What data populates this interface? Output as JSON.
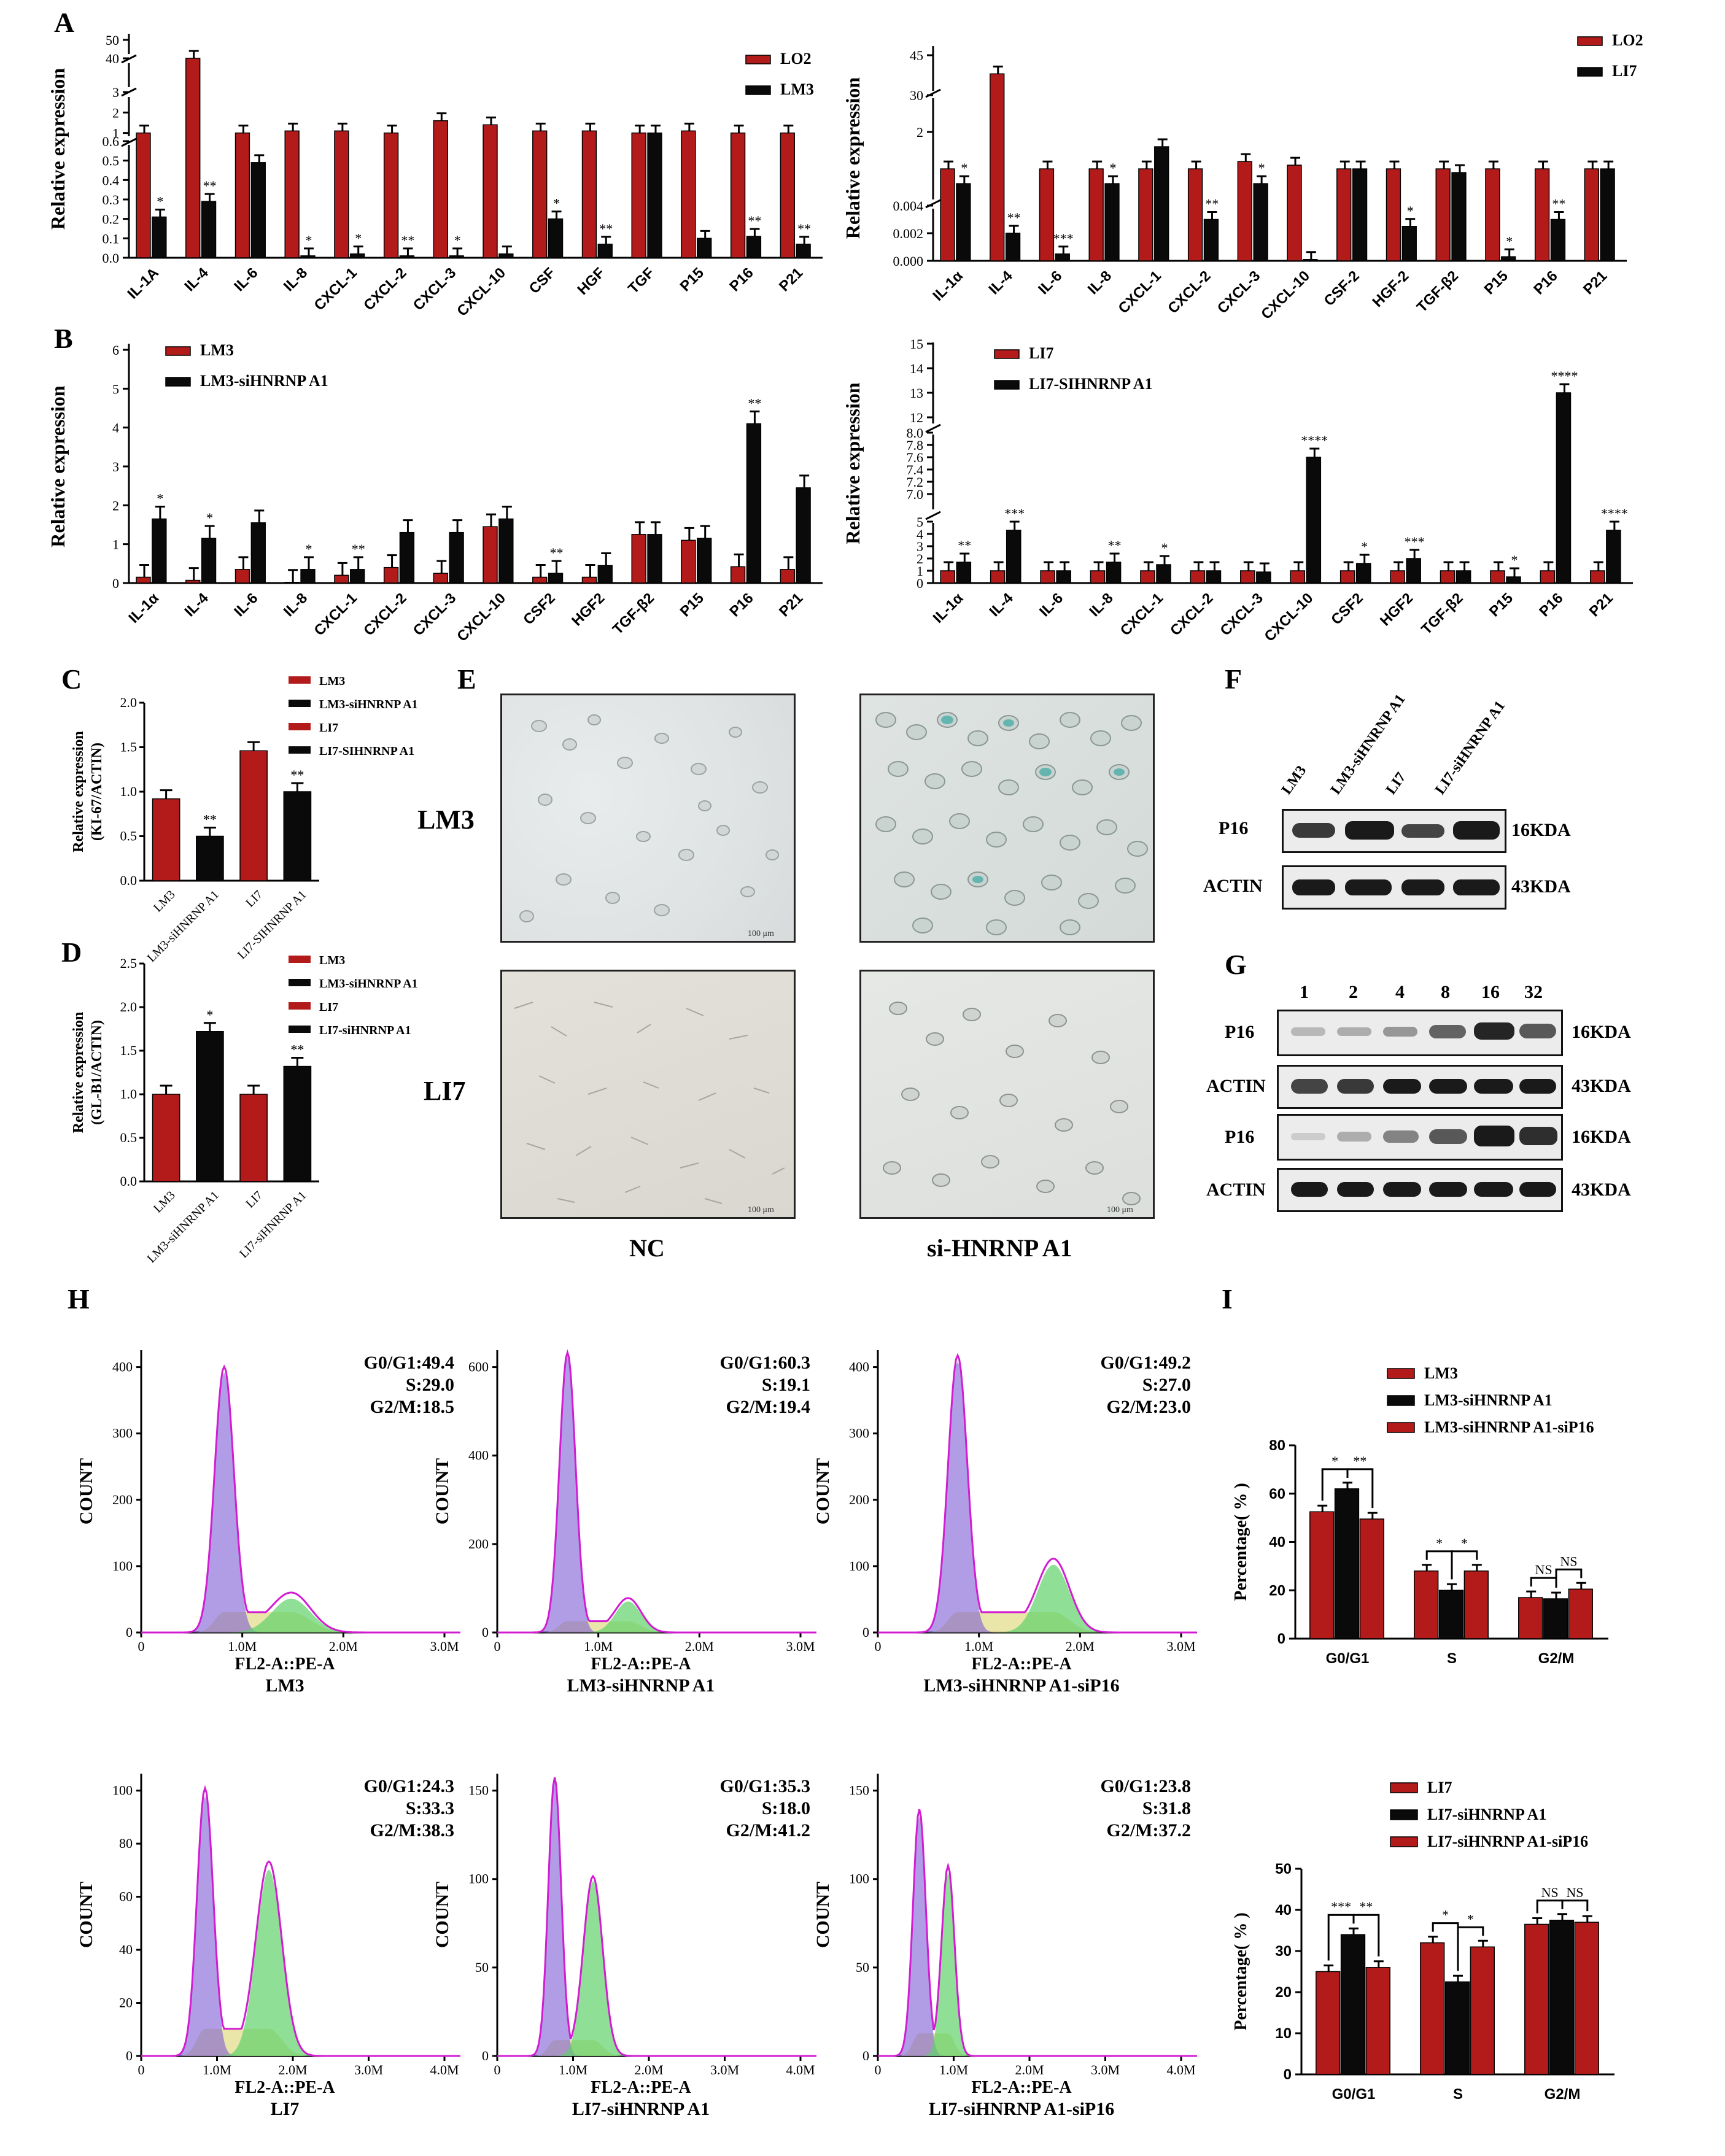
{
  "letters": {
    "A": "A",
    "B": "B",
    "C": "C",
    "D": "D",
    "E": "E",
    "F": "F",
    "G": "G",
    "H": "H",
    "I": "I"
  },
  "colors": {
    "red": "#b31b1b",
    "black": "#0a0a0a",
    "purple": "#7b5bd6",
    "green": "#5fd16a",
    "yellow": "#e6e19a",
    "magenta": "#d21cd2"
  },
  "chart_data": [
    {
      "id": "A-left",
      "type": "bar",
      "ylabel": "Relative expression",
      "categories": [
        "IL-1A",
        "IL-4",
        "IL-6",
        "IL-8",
        "CXCL-1",
        "CXCL-2",
        "CXCL-3",
        "CXCL-10",
        "CSF",
        "HGF",
        "TGF",
        "P15",
        "P16",
        "P21"
      ],
      "y_ticks_lower": [
        "0.0",
        "0.1",
        "0.2",
        "0.3",
        "0.4",
        "0.5",
        "0.6"
      ],
      "y_ticks_upper": [
        "1",
        "2",
        "3",
        "40",
        "50"
      ],
      "series": [
        {
          "name": "LO2",
          "values": [
            1.0,
            40,
            1.0,
            1.1,
            1.1,
            1.0,
            1.6,
            1.4,
            1.1,
            1.1,
            1.0,
            1.1,
            1.0,
            1.0
          ]
        },
        {
          "name": "LM3",
          "values": [
            0.21,
            0.29,
            0.49,
            0.01,
            0.02,
            0.01,
            0.01,
            0.02,
            0.2,
            0.07,
            1.0,
            0.1,
            0.11,
            0.07
          ]
        }
      ],
      "stars": [
        "*",
        "**",
        "",
        "*",
        "*",
        "**",
        "*",
        "",
        "*",
        "**",
        "",
        "",
        "**",
        "**"
      ]
    },
    {
      "id": "A-right",
      "type": "bar",
      "ylabel": "Relative expression",
      "categories": [
        "IL-1α",
        "IL-4",
        "IL-6",
        "IL-8",
        "CXCL-1",
        "CXCL-2",
        "CXCL-3",
        "CXCL-10",
        "CSF-2",
        "HGF-2",
        "TGF-β2",
        "P15",
        "P16",
        "P21"
      ],
      "y_ticks_lower": [
        "0.000",
        "0.002",
        "0.004"
      ],
      "y_ticks_upper": [
        "2",
        "30",
        "45"
      ],
      "series": [
        {
          "name": "LO2",
          "values": [
            1.0,
            38,
            1.0,
            1.0,
            1.0,
            1.0,
            1.2,
            1.1,
            1.0,
            1.0,
            1.0,
            1.0,
            1.0,
            1.0
          ]
        },
        {
          "name": "LI7",
          "values": [
            0.6,
            0.002,
            0.0005,
            0.6,
            1.6,
            0.003,
            0.6,
            0.0001,
            1.0,
            0.0025,
            0.9,
            0.0003,
            0.003,
            1.0
          ]
        }
      ],
      "stars": [
        "*",
        "**",
        "***",
        "*",
        "",
        "**",
        "*",
        "",
        "",
        "*",
        "",
        "*",
        "**",
        ""
      ]
    },
    {
      "id": "B-left",
      "type": "bar",
      "ylabel": "Relative expression",
      "categories": [
        "IL-1α",
        "IL-4",
        "IL-6",
        "IL-8",
        "CXCL-1",
        "CXCL-2",
        "CXCL-3",
        "CXCL-10",
        "CSF2",
        "HGF2",
        "TGF-β2",
        "P15",
        "P16",
        "P21"
      ],
      "y_ticks": [
        "0",
        "1",
        "2",
        "3",
        "4",
        "5",
        "6"
      ],
      "ylim": [
        0,
        6
      ],
      "series": [
        {
          "name": "LM3",
          "values": [
            0.15,
            0.07,
            0.35,
            0.02,
            0.2,
            0.4,
            0.25,
            1.45,
            0.15,
            0.15,
            1.25,
            1.1,
            0.42,
            0.35
          ]
        },
        {
          "name": "LM3-siHNRNP A1",
          "values": [
            1.65,
            1.15,
            1.55,
            0.35,
            0.35,
            1.3,
            1.3,
            1.65,
            0.25,
            0.45,
            1.25,
            1.15,
            4.1,
            2.45
          ]
        }
      ],
      "stars": [
        "*",
        "*",
        "",
        "*",
        "**",
        "",
        "",
        "",
        "**",
        "",
        "",
        "",
        "**",
        ""
      ]
    },
    {
      "id": "B-right",
      "type": "bar",
      "ylabel": "Relative expression",
      "categories": [
        "IL-1α",
        "IL-4",
        "IL-6",
        "IL-8",
        "CXCL-1",
        "CXCL-2",
        "CXCL-3",
        "CXCL-10",
        "CSF2",
        "HGF2",
        "TGF-β2",
        "P15",
        "P16",
        "P21"
      ],
      "y_ticks_lower": [
        "0",
        "1",
        "2",
        "3",
        "4",
        "5"
      ],
      "y_ticks_mid": [
        "7.0",
        "7.2",
        "7.4",
        "7.6",
        "7.8",
        "8.0"
      ],
      "y_ticks_upper": [
        "12",
        "13",
        "14",
        "15"
      ],
      "series": [
        {
          "name": "LI7",
          "values": [
            1.0,
            1.0,
            1.0,
            1.0,
            1.0,
            1.0,
            1.0,
            1.0,
            1.0,
            1.0,
            1.0,
            1.0,
            1.0,
            1.0
          ]
        },
        {
          "name": "LI7-SIHNRNP A1",
          "values": [
            1.7,
            4.3,
            1.0,
            1.7,
            1.5,
            1.0,
            0.9,
            7.6,
            1.6,
            2.0,
            1.0,
            0.5,
            13.0,
            4.3
          ]
        }
      ],
      "stars": [
        "**",
        "***",
        "",
        "**",
        "*",
        "",
        "",
        "****",
        "*",
        "***",
        "",
        "*",
        "****",
        "****"
      ]
    },
    {
      "id": "C",
      "type": "bar",
      "ylabel": "Relative expression\n(KI-67/ACTIN)",
      "categories": [
        "LM3",
        "LM3-siHNRNP A1",
        "LI7",
        "LI7-SIHNRNP A1"
      ],
      "y_ticks": [
        "0.0",
        "0.5",
        "1.0",
        "1.5",
        "2.0"
      ],
      "ylim": [
        0,
        2
      ],
      "values": [
        0.92,
        0.5,
        1.46,
        1.0
      ],
      "stars": [
        "",
        "**",
        "",
        "**"
      ],
      "legend": [
        "LM3",
        "LM3-siHNRNP A1",
        "LI7",
        "LI7-SIHNRNP A1"
      ]
    },
    {
      "id": "D",
      "type": "bar",
      "ylabel": "Relative expression\n(GL-B1/ACTIN)",
      "categories": [
        "LM3",
        "LM3-siHNRNP A1",
        "LI7",
        "LI7-siHNRNP A1"
      ],
      "y_ticks": [
        "0.0",
        "0.5",
        "1.0",
        "1.5",
        "2.0",
        "2.5"
      ],
      "ylim": [
        0,
        2.5
      ],
      "values": [
        1.0,
        1.72,
        1.0,
        1.32
      ],
      "stars": [
        "",
        "*",
        "",
        "**"
      ],
      "legend": [
        "LM3",
        "LM3-siHNRNP A1",
        "LI7",
        "LI7-siHNRNP A1"
      ]
    },
    {
      "id": "I-top",
      "type": "bar",
      "ylabel": "Percentage( % )",
      "categories": [
        "G0/G1",
        "S",
        "G2/M"
      ],
      "y_ticks": [
        "0",
        "20",
        "40",
        "60",
        "80"
      ],
      "ylim": [
        0,
        80
      ],
      "series": [
        {
          "name": "LM3",
          "values": [
            52.5,
            28,
            17
          ]
        },
        {
          "name": "LM3-siHNRNP A1",
          "values": [
            62,
            20,
            16.5
          ]
        },
        {
          "name": "LM3-siHNRNP A1-siP16",
          "values": [
            49.5,
            28,
            20.5
          ]
        }
      ],
      "brackets": [
        [
          "*",
          "**"
        ],
        [
          "*",
          "*"
        ],
        [
          "NS",
          "NS"
        ]
      ]
    },
    {
      "id": "I-bottom",
      "type": "bar",
      "ylabel": "Percentage( % )",
      "categories": [
        "G0/G1",
        "S",
        "G2/M"
      ],
      "y_ticks": [
        "0",
        "10",
        "20",
        "30",
        "40",
        "50"
      ],
      "ylim": [
        0,
        50
      ],
      "series": [
        {
          "name": "LI7",
          "values": [
            25,
            32,
            36.5
          ]
        },
        {
          "name": "LI7-siHNRNP A1",
          "values": [
            34,
            22.5,
            37.5
          ]
        },
        {
          "name": "LI7-siHNRNP A1-siP16",
          "values": [
            26,
            31,
            37
          ]
        }
      ],
      "brackets": [
        [
          "***",
          "**"
        ],
        [
          "*",
          "*"
        ],
        [
          "NS",
          "NS"
        ]
      ]
    },
    {
      "id": "H",
      "type": "area",
      "xlabel": "FL2-A::PE-A",
      "ylabel": "COUNT",
      "plots": [
        {
          "title": "LM3",
          "g0g1": "G0/G1:49.4",
          "s": "S:29.0",
          "g2m": "G2/M:18.5",
          "y_ticks": [
            "0",
            "100",
            "200",
            "300",
            "400"
          ],
          "x_ticks": [
            "0",
            "1.0M",
            "2.0M",
            "3.0M"
          ]
        },
        {
          "title": "LM3-siHNRNP A1",
          "g0g1": "G0/G1:60.3",
          "s": "S:19.1",
          "g2m": "G2/M:19.4",
          "y_ticks": [
            "0",
            "200",
            "400",
            "600"
          ],
          "x_ticks": [
            "0",
            "1.0M",
            "2.0M",
            "3.0M"
          ]
        },
        {
          "title": "LM3-siHNRNP A1-siP16",
          "g0g1": "G0/G1:49.2",
          "s": "S:27.0",
          "g2m": "G2/M:23.0",
          "y_ticks": [
            "0",
            "100",
            "200",
            "300",
            "400"
          ],
          "x_ticks": [
            "0",
            "1.0M",
            "2.0M",
            "3.0M"
          ]
        },
        {
          "title": "LI7",
          "g0g1": "G0/G1:24.3",
          "s": "S:33.3",
          "g2m": "G2/M:38.3",
          "y_ticks": [
            "0",
            "20",
            "40",
            "60",
            "80",
            "100"
          ],
          "x_ticks": [
            "0",
            "1.0M",
            "2.0M",
            "3.0M",
            "4.0M"
          ]
        },
        {
          "title": "LI7-siHNRNP A1",
          "g0g1": "G0/G1:35.3",
          "s": "S:18.0",
          "g2m": "G2/M:41.2",
          "y_ticks": [
            "0",
            "50",
            "100",
            "150"
          ],
          "x_ticks": [
            "0",
            "1.0M",
            "2.0M",
            "3.0M",
            "4.0M"
          ]
        },
        {
          "title": "LI7-siHNRNP A1-siP16",
          "g0g1": "G0/G1:23.8",
          "s": "S:31.8",
          "g2m": "G2/M:37.2",
          "y_ticks": [
            "0",
            "50",
            "100",
            "150"
          ],
          "x_ticks": [
            "0",
            "1.0M",
            "2.0M",
            "3.0M",
            "4.0M"
          ]
        }
      ]
    }
  ],
  "panelE": {
    "row1": "LM3",
    "row2": "LI7",
    "col1": "NC",
    "col2": "si-HNRNP A1",
    "scale": "100 μm"
  },
  "panelF": {
    "lanes": [
      "LM3",
      "LM3-siHNRNP A1",
      "LI7",
      "LI7-siHNRNP A1"
    ],
    "rows": [
      "P16",
      "ACTIN"
    ],
    "sizes": [
      "16KDA",
      "43KDA"
    ]
  },
  "panelG": {
    "lanes": [
      "1",
      "2",
      "4",
      "8",
      "16",
      "32"
    ],
    "rows": [
      "P16",
      "ACTIN",
      "P16",
      "ACTIN"
    ],
    "sizes": [
      "16KDA",
      "43KDA",
      "16KDA",
      "43KDA"
    ]
  }
}
